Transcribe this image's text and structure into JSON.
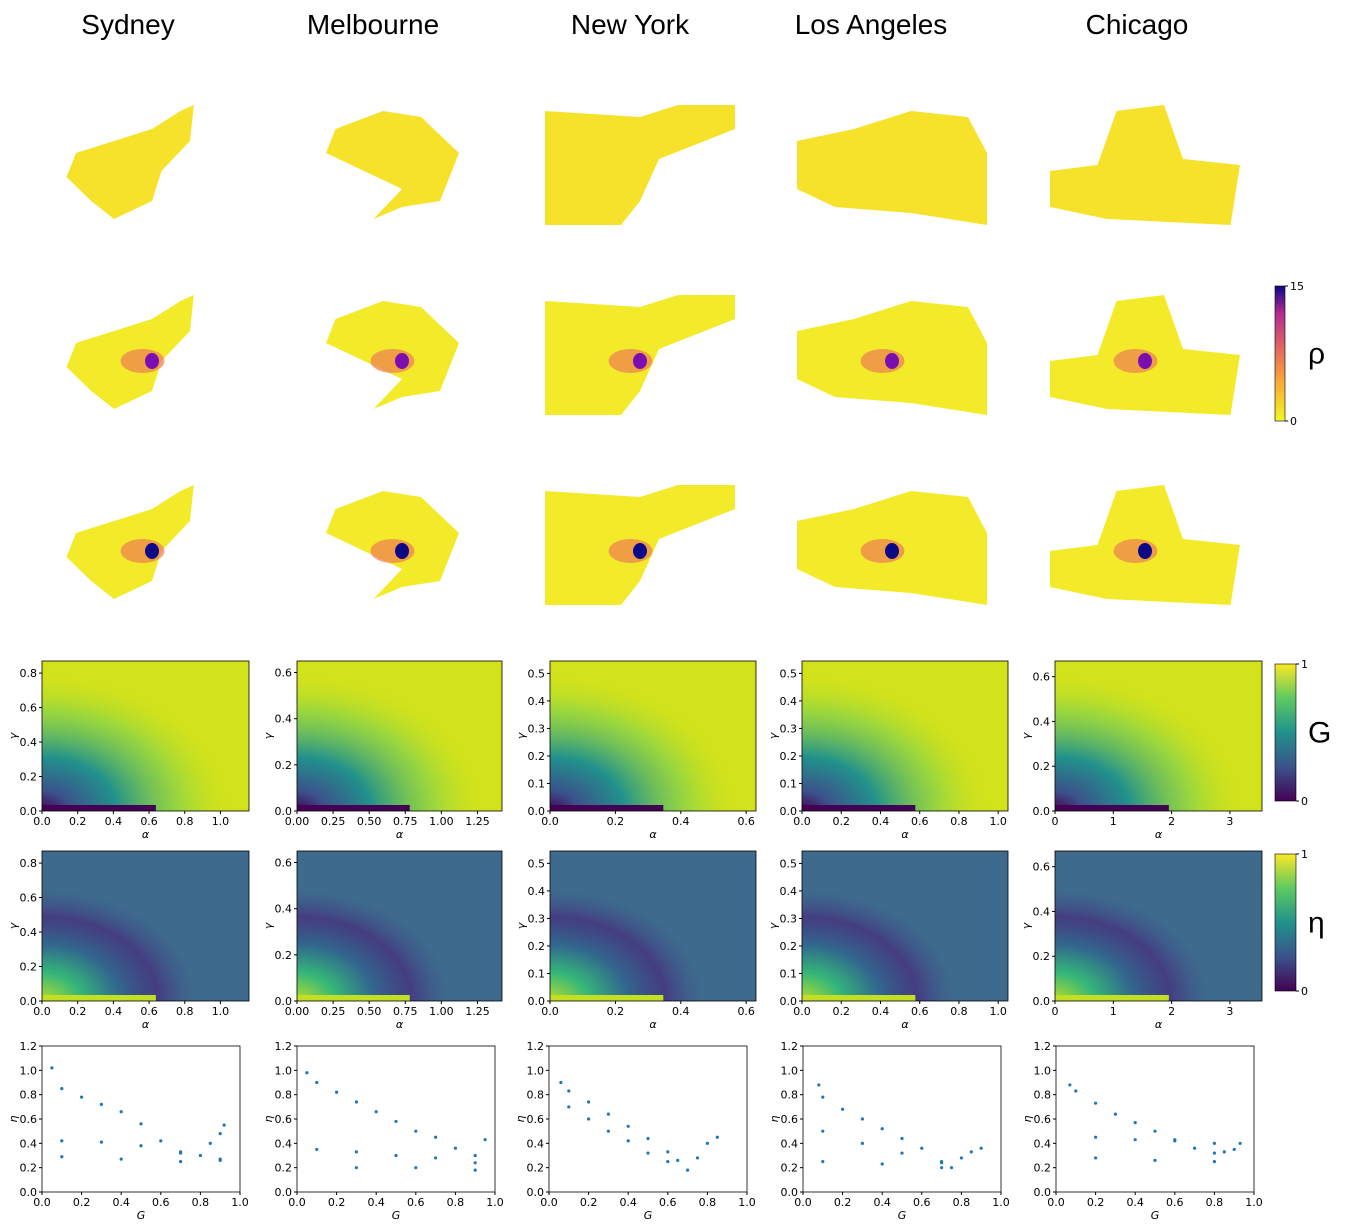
{
  "cities": [
    {
      "name": "Sydney",
      "heat_axes": {
        "xlabel": "α",
        "ylabel": "γ",
        "xlim": [
          0,
          1.16
        ],
        "xticks": [
          {
            "value": 0,
            "label": "0.0"
          },
          {
            "value": 0.2,
            "label": "0.2"
          },
          {
            "value": 0.4,
            "label": "0.4"
          },
          {
            "value": 0.6,
            "label": "0.6"
          },
          {
            "value": 0.8,
            "label": "0.8"
          },
          {
            "value": 1,
            "label": "1.0"
          }
        ],
        "ylim": [
          0,
          0.87
        ],
        "yticks": [
          {
            "value": 0,
            "label": "0.0"
          },
          {
            "value": 0.2,
            "label": "0.2"
          },
          {
            "value": 0.4,
            "label": "0.4"
          },
          {
            "value": 0.6,
            "label": "0.6"
          },
          {
            "value": 0.8,
            "label": "0.8"
          }
        ]
      },
      "scatter": {
        "x": [
          0.05,
          0.1,
          0.2,
          0.3,
          0.4,
          0.5,
          0.6,
          0.7,
          0.8,
          0.85,
          0.9,
          0.92,
          0.1,
          0.3,
          0.5,
          0.7,
          0.9,
          0.1,
          0.4,
          0.7,
          0.9
        ],
        "y": [
          1.02,
          0.85,
          0.78,
          0.72,
          0.66,
          0.56,
          0.42,
          0.32,
          0.3,
          0.4,
          0.48,
          0.55,
          0.42,
          0.41,
          0.38,
          0.33,
          0.26,
          0.29,
          0.27,
          0.25,
          0.27
        ]
      }
    },
    {
      "name": "Melbourne",
      "heat_axes": {
        "xlabel": "α",
        "ylabel": "γ",
        "xlim": [
          0,
          1.42
        ],
        "xticks": [
          {
            "value": 0,
            "label": "0.00"
          },
          {
            "value": 0.25,
            "label": "0.25"
          },
          {
            "value": 0.5,
            "label": "0.50"
          },
          {
            "value": 0.75,
            "label": "0.75"
          },
          {
            "value": 1,
            "label": "1.00"
          },
          {
            "value": 1.25,
            "label": "1.25"
          }
        ],
        "ylim": [
          0,
          0.65
        ],
        "yticks": [
          {
            "value": 0,
            "label": "0.0"
          },
          {
            "value": 0.2,
            "label": "0.2"
          },
          {
            "value": 0.4,
            "label": "0.4"
          },
          {
            "value": 0.6,
            "label": "0.6"
          }
        ]
      },
      "scatter": {
        "x": [
          0.05,
          0.1,
          0.2,
          0.3,
          0.4,
          0.5,
          0.6,
          0.7,
          0.8,
          0.9,
          0.95,
          0.1,
          0.3,
          0.5,
          0.7,
          0.9,
          0.3,
          0.6,
          0.9
        ],
        "y": [
          0.98,
          0.9,
          0.82,
          0.74,
          0.66,
          0.58,
          0.5,
          0.45,
          0.36,
          0.3,
          0.43,
          0.35,
          0.33,
          0.3,
          0.28,
          0.24,
          0.2,
          0.2,
          0.18
        ]
      }
    },
    {
      "name": "New York",
      "heat_axes": {
        "xlabel": "α",
        "ylabel": "γ",
        "xlim": [
          0,
          0.63
        ],
        "xticks": [
          {
            "value": 0,
            "label": "0.0"
          },
          {
            "value": 0.2,
            "label": "0.2"
          },
          {
            "value": 0.4,
            "label": "0.4"
          },
          {
            "value": 0.6,
            "label": "0.6"
          }
        ],
        "ylim": [
          0,
          0.545
        ],
        "yticks": [
          {
            "value": 0,
            "label": "0.0"
          },
          {
            "value": 0.1,
            "label": "0.1"
          },
          {
            "value": 0.2,
            "label": "0.2"
          },
          {
            "value": 0.3,
            "label": "0.3"
          },
          {
            "value": 0.4,
            "label": "0.4"
          },
          {
            "value": 0.5,
            "label": "0.5"
          }
        ]
      },
      "scatter": {
        "x": [
          0.06,
          0.1,
          0.2,
          0.3,
          0.4,
          0.5,
          0.6,
          0.65,
          0.7,
          0.75,
          0.8,
          0.85,
          0.1,
          0.2,
          0.3,
          0.4,
          0.5,
          0.6
        ],
        "y": [
          0.9,
          0.83,
          0.74,
          0.64,
          0.54,
          0.44,
          0.33,
          0.26,
          0.18,
          0.28,
          0.4,
          0.45,
          0.7,
          0.6,
          0.5,
          0.42,
          0.32,
          0.25
        ]
      }
    },
    {
      "name": "Los Angeles",
      "heat_axes": {
        "xlabel": "α",
        "ylabel": "γ",
        "xlim": [
          0,
          1.05
        ],
        "xticks": [
          {
            "value": 0,
            "label": "0.0"
          },
          {
            "value": 0.2,
            "label": "0.2"
          },
          {
            "value": 0.4,
            "label": "0.4"
          },
          {
            "value": 0.6,
            "label": "0.6"
          },
          {
            "value": 0.8,
            "label": "0.8"
          },
          {
            "value": 1,
            "label": "1.0"
          }
        ],
        "ylim": [
          0,
          0.545
        ],
        "yticks": [
          {
            "value": 0,
            "label": "0.0"
          },
          {
            "value": 0.1,
            "label": "0.1"
          },
          {
            "value": 0.2,
            "label": "0.2"
          },
          {
            "value": 0.3,
            "label": "0.3"
          },
          {
            "value": 0.4,
            "label": "0.4"
          },
          {
            "value": 0.5,
            "label": "0.5"
          }
        ]
      },
      "scatter": {
        "x": [
          0.08,
          0.1,
          0.2,
          0.3,
          0.4,
          0.5,
          0.6,
          0.7,
          0.75,
          0.8,
          0.85,
          0.9,
          0.1,
          0.3,
          0.5,
          0.7,
          0.1,
          0.4,
          0.7
        ],
        "y": [
          0.88,
          0.78,
          0.68,
          0.6,
          0.52,
          0.44,
          0.36,
          0.25,
          0.2,
          0.28,
          0.33,
          0.36,
          0.5,
          0.4,
          0.32,
          0.24,
          0.25,
          0.23,
          0.2
        ]
      }
    },
    {
      "name": "Chicago",
      "heat_axes": {
        "xlabel": "α",
        "ylabel": "γ",
        "xlim": [
          0,
          3.55
        ],
        "xticks": [
          0,
          1,
          2,
          3
        ],
        "ylim": [
          0,
          0.67
        ],
        "yticks": [
          {
            "value": 0,
            "label": "0.0"
          },
          {
            "value": 0.2,
            "label": "0.2"
          },
          {
            "value": 0.4,
            "label": "0.4"
          },
          {
            "value": 0.6,
            "label": "0.6"
          }
        ]
      },
      "scatter": {
        "x": [
          0.07,
          0.1,
          0.2,
          0.3,
          0.4,
          0.5,
          0.6,
          0.7,
          0.8,
          0.85,
          0.9,
          0.93,
          0.2,
          0.4,
          0.6,
          0.8,
          0.2,
          0.5,
          0.8
        ],
        "y": [
          0.88,
          0.83,
          0.73,
          0.64,
          0.57,
          0.5,
          0.43,
          0.36,
          0.32,
          0.33,
          0.35,
          0.4,
          0.45,
          0.43,
          0.42,
          0.4,
          0.28,
          0.26,
          0.25
        ]
      }
    }
  ],
  "scatter_axes": {
    "type": "scatter",
    "xlabel": "G",
    "ylabel": "η",
    "color": "#1f77b4",
    "xlim": [
      0,
      1
    ],
    "xticks": [
      {
        "value": 0,
        "label": "0.0"
      },
      {
        "value": 0.2,
        "label": "0.2"
      },
      {
        "value": 0.4,
        "label": "0.4"
      },
      {
        "value": 0.6,
        "label": "0.6"
      },
      {
        "value": 0.8,
        "label": "0.8"
      },
      {
        "value": 1,
        "label": "1.0"
      }
    ],
    "ylim": [
      0,
      1.2
    ],
    "yticks": [
      {
        "value": 0,
        "label": "0.0"
      },
      {
        "value": 0.2,
        "label": "0.2"
      },
      {
        "value": 0.4,
        "label": "0.4"
      },
      {
        "value": 0.6,
        "label": "0.6"
      },
      {
        "value": 0.8,
        "label": "0.8"
      },
      {
        "value": 1,
        "label": "1.0"
      },
      {
        "value": 1.2,
        "label": "1.2"
      }
    ]
  },
  "colorbars": [
    {
      "label": "ρ",
      "colormap": "plasma_r",
      "ticks": [
        0,
        15
      ]
    },
    {
      "label": "G",
      "colormap": "viridis",
      "ticks": [
        0,
        1
      ]
    },
    {
      "label": "η",
      "colormap": "viridis",
      "ticks": [
        0,
        1
      ]
    }
  ]
}
